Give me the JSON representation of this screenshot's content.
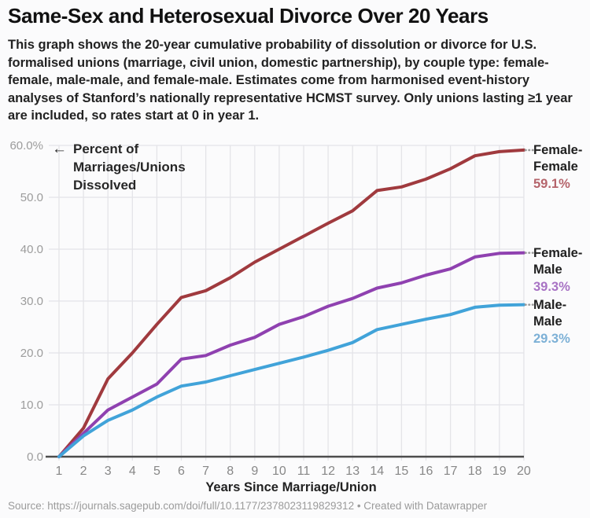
{
  "title": "Same-Sex and Heterosexual Divorce Over 20 Years",
  "description": "This graph shows the 20-year cumulative probability of dissolution or divorce for U.S. formalised unions (marriage, civil union, domestic partnership), by couple type: female-female, male-male, and female-male. Estimates come from harmonised event-history analyses of Stanford’s nationally representative HCMST survey. Only unions lasting ≥1 year are included, so rates start at 0 in year 1.",
  "annotation": {
    "arrow": "←",
    "text": "Percent of Marriages/Unions Dissolved"
  },
  "footer": "Source: https://journals.sagepub.com/doi/full/10.1177/2378023119829312 • Created with Datawrapper",
  "colors": {
    "grid": "#e4e4e8",
    "axis": "#4d4d4d",
    "y_tick_text": "#9c9c9c",
    "x_tick_text": "#878787",
    "leader_dots": "#9a9a9a",
    "legend_name_text": "#1f1f1f"
  },
  "chart_data": {
    "type": "line",
    "title": "Same-Sex and Heterosexual Divorce Over 20 Years",
    "xlabel": "Years Since Marriage/Union",
    "ylabel": "Percent of Marriages/Unions Dissolved",
    "grid": true,
    "legend_position": "right",
    "xlim": [
      1,
      20
    ],
    "ylim": [
      0,
      60
    ],
    "x": [
      1,
      2,
      3,
      4,
      5,
      6,
      7,
      8,
      9,
      10,
      11,
      12,
      13,
      14,
      15,
      16,
      17,
      18,
      19,
      20
    ],
    "y_ticks": [
      {
        "label": "60.0%",
        "value": 60
      },
      {
        "label": "50.0",
        "value": 50
      },
      {
        "label": "40.0",
        "value": 40
      },
      {
        "label": "30.0",
        "value": 30
      },
      {
        "label": "20.0",
        "value": 20
      },
      {
        "label": "10.0",
        "value": 10
      },
      {
        "label": "0.0",
        "value": 0
      }
    ],
    "series": [
      {
        "name": "Female-Female",
        "end_label": "59.1%",
        "color": "#a03a3e",
        "label_color": "#b5646b",
        "values": [
          0,
          5.5,
          15.0,
          20.0,
          25.5,
          30.7,
          32.0,
          34.5,
          37.5,
          40.0,
          42.5,
          45.0,
          47.4,
          51.3,
          52.0,
          53.5,
          55.5,
          58.0,
          58.8,
          59.1
        ]
      },
      {
        "name": "Female-Male",
        "end_label": "39.3%",
        "color": "#8f41b0",
        "label_color": "#a873c4",
        "values": [
          0,
          4.5,
          9.0,
          11.5,
          14.0,
          18.8,
          19.5,
          21.5,
          23.0,
          25.5,
          27.0,
          29.0,
          30.5,
          32.5,
          33.5,
          35.0,
          36.2,
          38.5,
          39.2,
          39.3
        ]
      },
      {
        "name": "Male-Male",
        "end_label": "29.3%",
        "color": "#41a3d9",
        "label_color": "#7cb0d6",
        "values": [
          0,
          4.0,
          7.0,
          9.0,
          11.5,
          13.6,
          14.4,
          15.6,
          16.8,
          18.0,
          19.2,
          20.5,
          22.0,
          24.5,
          25.5,
          26.5,
          27.4,
          28.8,
          29.2,
          29.3
        ]
      }
    ]
  }
}
